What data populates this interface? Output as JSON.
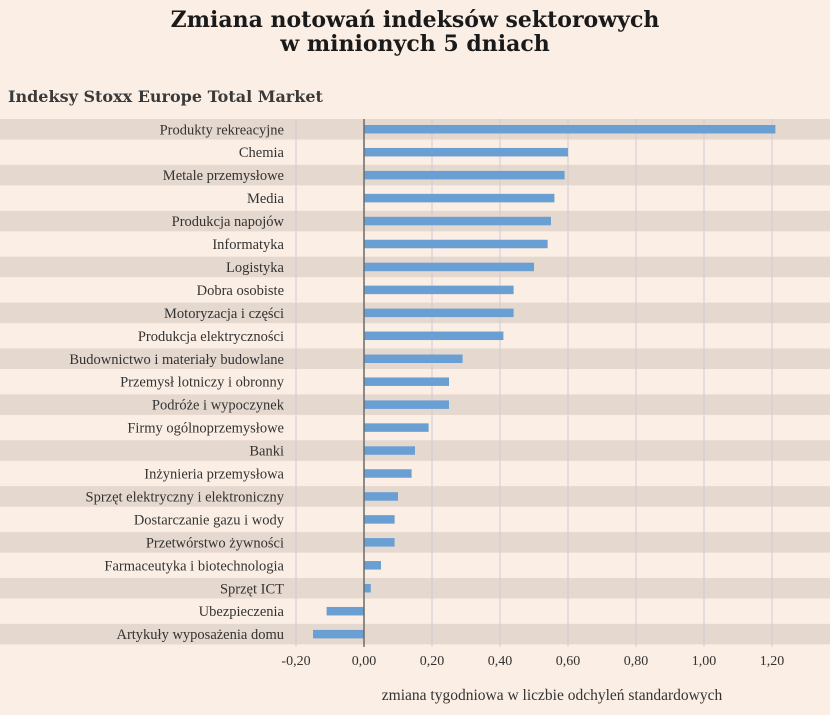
{
  "chart_data": {
    "type": "bar",
    "orientation": "horizontal",
    "title": "Zmiana notowań indeksów sektorowych\nw minionych 5 dniach",
    "subtitle": "Indeksy Stoxx Europe Total Market",
    "xlabel": "zmiana tygodniowa w liczbie odchyleń standardowych",
    "ylabel": "",
    "xlim": [
      -0.2,
      1.2
    ],
    "xticks": [
      "-0,20",
      "0,00",
      "0,20",
      "0,40",
      "0,60",
      "0,80",
      "1,00",
      "1,20"
    ],
    "grid": true,
    "categories": [
      "Produkty rekreacyjne",
      "Chemia",
      "Metale przemysłowe",
      "Media",
      "Produkcja napojów",
      "Informatyka",
      "Logistyka",
      "Dobra osobiste",
      "Motoryzacja i części",
      "Produkcja elektryczności",
      "Budownictwo i materiały budowlane",
      "Przemysł lotniczy i obronny",
      "Podróże i wypoczynek",
      "Firmy ogólnoprzemysłowe",
      "Banki",
      "Inżynieria przemysłowa",
      "Sprzęt elektryczny i elektroniczny",
      "Dostarczanie gazu i wody",
      "Przetwórstwo żywności",
      "Farmaceutyka i biotechnologia",
      "Sprzęt ICT",
      "Ubezpieczenia",
      "Artykuły wyposażenia domu"
    ],
    "values": [
      1.21,
      0.6,
      0.59,
      0.56,
      0.55,
      0.54,
      0.5,
      0.44,
      0.44,
      0.41,
      0.29,
      0.25,
      0.25,
      0.19,
      0.15,
      0.14,
      0.1,
      0.09,
      0.09,
      0.05,
      0.02,
      -0.11,
      -0.15
    ],
    "colors": {
      "bar": "#6a9fd4",
      "stripe": "#e5d8cf",
      "background": "#fbeee4",
      "grid": "#cfcbd6",
      "zero_line": "#6b6b6b"
    }
  }
}
